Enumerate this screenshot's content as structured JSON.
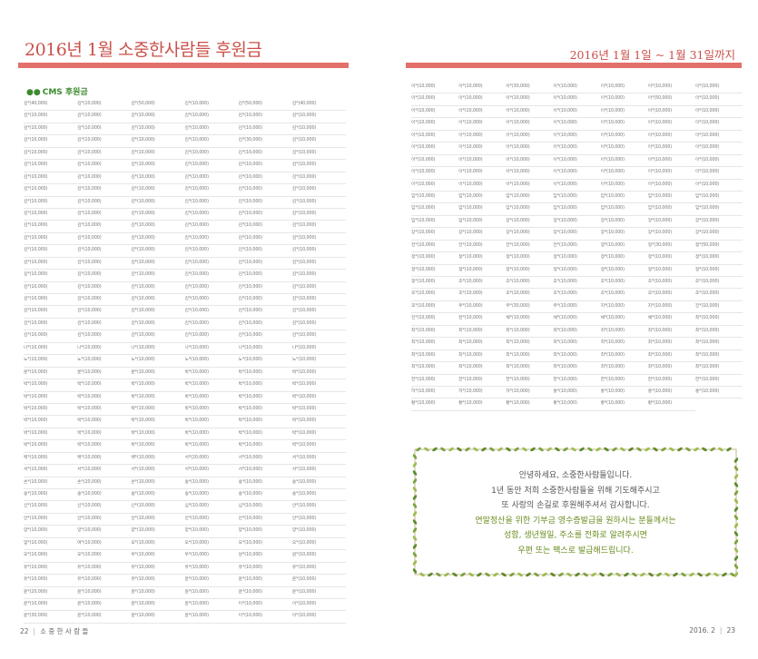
{
  "left_page": {
    "title": "2016년 1월 소중한사람들 후원금",
    "section_label": "CMS 후원금",
    "donors": [
      "김*(40,000)",
      "김*(10,000)",
      "김*(50,000)",
      "김*(10,000)",
      "김*(50,000)",
      "김*(40,000)",
      "김*(10,000)",
      "김*(10,000)",
      "김*(10,000)",
      "김*(10,000)",
      "김*(10,000)",
      "김*(10,000)",
      "김*(10,000)",
      "김*(10,000)",
      "김*(10,000)",
      "김*(10,000)",
      "김*(10,000)",
      "김*(10,000)",
      "김*(10,000)",
      "김*(10,000)",
      "김*(10,000)",
      "김*(10,000)",
      "김*(30,000)",
      "김*(10,000)",
      "김*(10,000)",
      "김*(10,000)",
      "김*(10,000)",
      "김*(10,000)",
      "김*(10,000)",
      "김*(10,000)",
      "김*(10,000)",
      "김*(10,000)",
      "김*(10,000)",
      "김*(10,000)",
      "김*(10,000)",
      "김*(10,000)",
      "김*(10,000)",
      "김*(10,000)",
      "김*(10,000)",
      "김*(10,000)",
      "김*(10,000)",
      "김*(10,000)",
      "김*(10,000)",
      "김*(10,000)",
      "김*(10,000)",
      "김*(10,000)",
      "김*(10,000)",
      "김*(10,000)",
      "김*(10,000)",
      "김*(10,000)",
      "김*(10,000)",
      "김*(10,000)",
      "김*(10,000)",
      "김*(10,000)",
      "김*(10,000)",
      "김*(10,000)",
      "김*(10,000)",
      "김*(10,000)",
      "김*(10,000)",
      "김*(10,000)",
      "김*(10,000)",
      "김*(10,000)",
      "김*(10,000)",
      "김*(10,000)",
      "김*(10,000)",
      "김*(10,000)",
      "김*(10,000)",
      "김*(10,000)",
      "김*(10,000)",
      "김*(10,000)",
      "김*(10,000)",
      "김*(10,000)",
      "김*(10,000)",
      "김*(10,000)",
      "김*(10,000)",
      "김*(10,000)",
      "김*(10,000)",
      "김*(10,000)",
      "김*(10,000)",
      "김*(10,000)",
      "김*(10,000)",
      "김*(10,000)",
      "김*(10,000)",
      "김*(10,000)",
      "김*(10,000)",
      "김*(10,000)",
      "김*(10,000)",
      "김*(10,000)",
      "김*(10,000)",
      "김*(10,000)",
      "김*(10,000)",
      "김*(10,000)",
      "김*(10,000)",
      "김*(10,000)",
      "김*(10,000)",
      "김*(10,000)",
      "김*(10,000)",
      "김*(10,000)",
      "김*(10,000)",
      "김*(10,000)",
      "김*(10,000)",
      "김*(10,000)",
      "김*(10,000)",
      "김*(10,000)",
      "김*(10,000)",
      "김*(10,000)",
      "김*(10,000)",
      "김*(10,000)",
      "김*(10,000)",
      "김*(10,000)",
      "김*(10,000)",
      "김*(10,000)",
      "김*(10,000)",
      "김*(10,000)",
      "김*(10,000)",
      "김*(10,000)",
      "김*(10,000)",
      "김*(10,000)",
      "김*(10,000)",
      "김*(10,000)",
      "나*(10,000)",
      "나*(10,000)",
      "나*(10,000)",
      "나*(10,000)",
      "나*(10,000)",
      "나*(10,000)",
      "노*(10,000)",
      "노*(10,000)",
      "노*(10,000)",
      "노*(10,000)",
      "노*(10,000)",
      "노*(10,000)",
      "문*(10,000)",
      "문*(10,000)",
      "문*(10,000)",
      "박*(10,000)",
      "박*(10,000)",
      "박*(10,000)",
      "박*(10,000)",
      "박*(10,000)",
      "박*(10,000)",
      "박*(10,000)",
      "박*(10,000)",
      "박*(10,000)",
      "박*(10,000)",
      "박*(10,000)",
      "박*(10,000)",
      "박*(10,000)",
      "박*(10,000)",
      "박*(10,000)",
      "박*(10,000)",
      "박*(10,000)",
      "박*(10,000)",
      "박*(10,000)",
      "박*(10,000)",
      "박*(10,000)",
      "박*(10,000)",
      "박*(10,000)",
      "박*(10,000)",
      "박*(10,000)",
      "박*(10,000)",
      "박*(10,000)",
      "박*(10,000)",
      "박*(10,000)",
      "박*(10,000)",
      "박*(10,000)",
      "박*(10,000)",
      "박*(10,000)",
      "박*(10,000)",
      "박*(10,000)",
      "박*(10,000)",
      "박*(10,000)",
      "박*(10,000)",
      "박*(10,000)",
      "백*(10,000)",
      "백*(10,000)",
      "백*(10,000)",
      "서*(20,000)",
      "서*(10,000)",
      "서*(10,000)",
      "서*(10,000)",
      "서*(10,000)",
      "서*(10,000)",
      "서*(10,000)",
      "서*(10,000)",
      "서*(10,000)",
      "손*(10,000)",
      "손*(20,000)",
      "손*(10,000)",
      "송*(10,000)",
      "송*(10,000)",
      "송*(10,000)",
      "송*(10,000)",
      "송*(10,000)",
      "송*(10,000)",
      "송*(10,000)",
      "송*(10,000)",
      "송*(10,000)",
      "신*(10,000)",
      "신*(10,000)",
      "신*(10,000)",
      "심*(10,000)",
      "심*(10,000)",
      "안*(10,000)",
      "안*(10,000)",
      "안*(10,000)",
      "안*(10,000)",
      "안*(10,000)",
      "안*(10,000)",
      "안*(10,000)",
      "양*(10,000)",
      "양*(10,000)",
      "양*(10,000)",
      "양*(10,000)",
      "양*(10,000)",
      "양*(10,000)",
      "엄*(10,000)",
      "여*(10,000)",
      "오*(10,000)",
      "오*(10,000)",
      "오*(10,000)",
      "오*(10,000)",
      "오*(10,000)",
      "오*(10,000)",
      "우*(10,000)",
      "우*(10,000)",
      "원*(10,000)",
      "원*(10,000)",
      "유*(10,000)",
      "유*(10,000)",
      "유*(10,000)",
      "유*(10,000)",
      "유*(10,000)",
      "유*(10,000)",
      "유*(10,000)",
      "유*(10,000)",
      "유*(10,000)",
      "윤*(10,000)",
      "윤*(10,000)",
      "윤*(10,000)",
      "윤*(20,000)",
      "윤*(10,000)",
      "윤*(10,000)",
      "윤*(10,000)",
      "윤*(10,000)",
      "윤*(10,000)",
      "윤*(10,000)",
      "윤*(10,000)",
      "윤*(10,000)",
      "윤*(10,000)",
      "이*(10,000)",
      "이*(10,000)",
      "윤*(30,000)",
      "윤*(10,000)",
      "윤*(10,000)",
      "윤*(10,000)",
      "이*(10,000)",
      "이*(10,000)"
    ],
    "footer_page": "22",
    "footer_text": "소 중 한 사 람 들"
  },
  "right_page": {
    "title": "2016년 1월 1일 ~ 1월 31일까지",
    "donors": [
      "이*(10,000)",
      "이*(10,000)",
      "이*(30,000)",
      "이*(10,000)",
      "이*(10,000)",
      "이*(10,000)",
      "이*(10,000)",
      "이*(10,000)",
      "이*(10,000)",
      "이*(10,000)",
      "이*(10,000)",
      "이*(10,000)",
      "이*(50,000)",
      "이*(10,000)",
      "이*(10,000)",
      "이*(10,000)",
      "이*(10,000)",
      "이*(10,000)",
      "이*(10,000)",
      "이*(10,000)",
      "이*(10,000)",
      "이*(10,000)",
      "이*(10,000)",
      "이*(10,000)",
      "이*(10,000)",
      "이*(10,000)",
      "이*(10,000)",
      "이*(10,000)",
      "이*(10,000)",
      "이*(10,000)",
      "이*(10,000)",
      "이*(10,000)",
      "이*(10,000)",
      "이*(10,000)",
      "이*(10,000)",
      "이*(10,000)",
      "이*(10,000)",
      "이*(10,000)",
      "이*(10,000)",
      "이*(10,000)",
      "이*(10,000)",
      "이*(10,000)",
      "이*(10,000)",
      "이*(10,000)",
      "이*(10,000)",
      "이*(10,000)",
      "이*(10,000)",
      "이*(10,000)",
      "이*(10,000)",
      "이*(10,000)",
      "이*(10,000)",
      "이*(10,000)",
      "이*(10,000)",
      "이*(10,000)",
      "이*(10,000)",
      "이*(10,000)",
      "이*(10,000)",
      "이*(10,000)",
      "이*(10,000)",
      "이*(10,000)",
      "이*(10,000)",
      "이*(10,000)",
      "이*(10,000)",
      "임*(10,000)",
      "임*(10,000)",
      "임*(10,000)",
      "임*(10,000)",
      "임*(10,000)",
      "임*(10,000)",
      "임*(10,000)",
      "임*(10,000)",
      "임*(10,000)",
      "임*(10,000)",
      "임*(10,000)",
      "임*(10,000)",
      "임*(10,000)",
      "임*(10,000)",
      "임*(10,000)",
      "임*(10,000)",
      "장*(10,000)",
      "장*(10,000)",
      "장*(10,000)",
      "장*(10,000)",
      "장*(10,000)",
      "장*(10,000)",
      "장*(10,000)",
      "장*(10,000)",
      "장*(10,000)",
      "장*(10,000)",
      "장*(10,000)",
      "장*(10,000)",
      "전*(10,000)",
      "전*(10,000)",
      "전*(10,000)",
      "전*(10,000)",
      "정*(10,000)",
      "정*(30,000)",
      "정*(50,000)",
      "정*(10,000)",
      "정*(10,000)",
      "정*(10,000)",
      "정*(10,000)",
      "정*(10,000)",
      "정*(10,000)",
      "정*(10,000)",
      "정*(10,000)",
      "정*(10,000)",
      "정*(10,000)",
      "정*(10,000)",
      "정*(10,000)",
      "정*(10,000)",
      "정*(10,000)",
      "정*(10,000)",
      "조*(10,000)",
      "조*(10,000)",
      "조*(10,000)",
      "조*(10,000)",
      "조*(10,000)",
      "조*(10,000)",
      "조*(10,000)",
      "조*(10,000)",
      "조*(10,000)",
      "조*(10,000)",
      "조*(10,000)",
      "조*(10,000)",
      "조*(10,000)",
      "조*(10,000)",
      "주*(10,000)",
      "주*(30,000)",
      "주*(10,000)",
      "지*(10,000)",
      "지*(10,000)",
      "진*(10,000)",
      "진*(10,000)",
      "천*(10,000)",
      "채*(10,000)",
      "채*(10,000)",
      "채*(10,000)",
      "채*(10,000)",
      "최*(10,000)",
      "최*(10,000)",
      "최*(10,000)",
      "최*(10,000)",
      "최*(10,000)",
      "최*(10,000)",
      "최*(10,000)",
      "최*(10,000)",
      "최*(10,000)",
      "최*(10,000)",
      "최*(10,000)",
      "최*(10,000)",
      "최*(10,000)",
      "최*(10,000)",
      "최*(10,000)",
      "최*(10,000)",
      "최*(10,000)",
      "최*(10,000)",
      "최*(10,000)",
      "최*(10,000)",
      "최*(10,000)",
      "최*(10,000)",
      "최*(10,000)",
      "최*(10,000)",
      "최*(10,000)",
      "최*(10,000)",
      "최*(10,000)",
      "최*(10,000)",
      "최*(10,000)",
      "한*(10,000)",
      "한*(10,000)",
      "한*(10,000)",
      "한*(10,000)",
      "한*(10,000)",
      "한*(10,000)",
      "한*(10,000)",
      "허*(10,000)",
      "허*(10,000)",
      "허*(10,000)",
      "홍*(10,000)",
      "홍*(10,000)",
      "홍*(10,000)",
      "홍*(10,000)",
      "황*(10,000)",
      "황*(10,000)",
      "황*(10,000)",
      "황*(10,000)",
      "황*(10,000)",
      "황*(10,000)"
    ],
    "notice": {
      "lines": [
        "안녕하세요, 소중한사람들입니다.",
        "1년 동안 저희 소중한사람들을 위해 기도해주시고",
        "또 사랑의 손길로 후원해주셔서 감사합니다.",
        "연말정산을 위한 기부금 영수증발급을 원하시는 분들께서는",
        "성함, 생년월일, 주소를 전화로 알려주시면",
        "우편 또는 팩스로 발급해드립니다."
      ],
      "highlight_color": "#6a8c1e"
    },
    "footer_page": "23",
    "footer_date": "2016. 2"
  },
  "colors": {
    "accent": "#c9514a",
    "rule": "#e3706b",
    "section_green": "#3b8a2e",
    "vine_green": "#7aa33a"
  }
}
